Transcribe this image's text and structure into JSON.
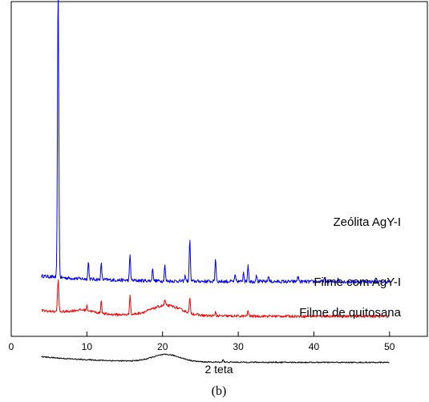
{
  "chart_data": {
    "type": "line",
    "xlabel": "2 teta",
    "xlim": [
      0,
      55
    ],
    "xticks": [
      0,
      10,
      20,
      30,
      40,
      50
    ],
    "yticks_shown": false,
    "grid": false,
    "caption": "(b)",
    "series": [
      {
        "name": "Zeólita AgY-I",
        "color": "#0000ff",
        "baseline": 0.12,
        "noise": 0.012,
        "x_range": [
          4,
          50
        ],
        "peaks": [
          {
            "x": 6.2,
            "h": 1.0,
            "w": 0.12
          },
          {
            "x": 10.2,
            "h": 0.06,
            "w": 0.1
          },
          {
            "x": 11.9,
            "h": 0.055,
            "w": 0.1
          },
          {
            "x": 15.7,
            "h": 0.09,
            "w": 0.1
          },
          {
            "x": 18.7,
            "h": 0.045,
            "w": 0.1
          },
          {
            "x": 20.3,
            "h": 0.055,
            "w": 0.1
          },
          {
            "x": 23.0,
            "h": 0.02,
            "w": 0.1
          },
          {
            "x": 23.6,
            "h": 0.15,
            "w": 0.1
          },
          {
            "x": 27.0,
            "h": 0.08,
            "w": 0.1
          },
          {
            "x": 29.6,
            "h": 0.02,
            "w": 0.1
          },
          {
            "x": 30.7,
            "h": 0.035,
            "w": 0.1
          },
          {
            "x": 31.3,
            "h": 0.06,
            "w": 0.1
          },
          {
            "x": 32.4,
            "h": 0.025,
            "w": 0.1
          },
          {
            "x": 34.0,
            "h": 0.02,
            "w": 0.1
          },
          {
            "x": 37.9,
            "h": 0.015,
            "w": 0.15
          },
          {
            "x": 41.4,
            "h": 0.01,
            "w": 0.15
          },
          {
            "x": 43.2,
            "h": 0.008,
            "w": 0.15
          }
        ],
        "humps": []
      },
      {
        "name": "Filme com AgY-I",
        "color": "#ff0000",
        "baseline": 0.0,
        "noise": 0.009,
        "x_range": [
          4,
          50
        ],
        "peaks": [
          {
            "x": 6.2,
            "h": 0.11,
            "w": 0.12
          },
          {
            "x": 10.0,
            "h": 0.015,
            "w": 0.1
          },
          {
            "x": 11.9,
            "h": 0.045,
            "w": 0.1
          },
          {
            "x": 15.7,
            "h": 0.07,
            "w": 0.1
          },
          {
            "x": 20.3,
            "h": 0.02,
            "w": 0.1
          },
          {
            "x": 23.6,
            "h": 0.05,
            "w": 0.1
          },
          {
            "x": 27.0,
            "h": 0.015,
            "w": 0.1
          },
          {
            "x": 31.3,
            "h": 0.02,
            "w": 0.1
          }
        ],
        "humps": [
          {
            "x": 9.5,
            "h": 0.012,
            "w": 2.0
          },
          {
            "x": 20.5,
            "h": 0.035,
            "w": 2.8
          }
        ]
      },
      {
        "name": "Filme de quitosana",
        "color": "#000000",
        "baseline": -0.16,
        "noise": 0.004,
        "x_range": [
          4,
          50
        ],
        "peaks": [
          {
            "x": 28.0,
            "h": 0.01,
            "w": 0.1
          }
        ],
        "humps": [
          {
            "x": 20.5,
            "h": 0.025,
            "w": 2.6
          }
        ]
      }
    ]
  }
}
